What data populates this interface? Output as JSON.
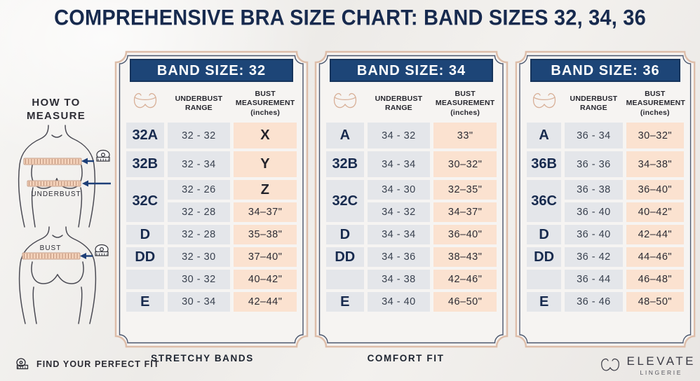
{
  "title": "COMPREHENSIVE BRA SIZE CHART: BAND SIZES 32, 34, 36",
  "how_to_measure": {
    "heading": "HOW TO MEASURE",
    "underbust_label": "UNDERBUST",
    "bust_label": "BUST"
  },
  "chart_data": {
    "type": "table",
    "tables": [
      {
        "band_label": "BAND SIZE: 32",
        "caption": "STRETCHY BANDS",
        "columns": {
          "cup_icon": "bra-icon",
          "underbust": "UNDERBUST RANGE",
          "bust": "BUST MEASUREMENT (inches)"
        },
        "rows": [
          {
            "cup": "32A",
            "range": "32 - 32",
            "bust": "X"
          },
          {
            "cup": "32B",
            "range": "32 - 34",
            "bust": "Y"
          },
          {
            "cup": "32C",
            "cup_span": 2,
            "range": "32 - 26",
            "bust": "Z"
          },
          {
            "cup": null,
            "range": "32 - 28",
            "bust": "34–37\""
          },
          {
            "cup": "D",
            "range": "32 - 28",
            "bust": "35–38\""
          },
          {
            "cup": "DD",
            "range": "32 - 30",
            "bust": "37–40\""
          },
          {
            "cup": "",
            "range": "30 - 32",
            "bust": "40–42\""
          },
          {
            "cup": "E",
            "range": "30 - 34",
            "bust": "42–44\""
          }
        ]
      },
      {
        "band_label": "BAND SIZE: 34",
        "caption": "COMFORT FIT",
        "columns": {
          "cup_icon": "bra-icon",
          "underbust": "UNDERBUST RANGE",
          "bust": "BUST MEASUREMENT (inches)"
        },
        "rows": [
          {
            "cup": "A",
            "range": "34 - 32",
            "bust": "33\""
          },
          {
            "cup": "32B",
            "range": "34 - 34",
            "bust": "30–32\""
          },
          {
            "cup": "32C",
            "cup_span": 2,
            "range": "34 - 30",
            "bust": "32–35\""
          },
          {
            "cup": null,
            "range": "34 - 32",
            "bust": "34–37\""
          },
          {
            "cup": "D",
            "range": "34 - 34",
            "bust": "36–40\""
          },
          {
            "cup": "DD",
            "range": "34 - 36",
            "bust": "38–43\""
          },
          {
            "cup": "",
            "range": "34 - 38",
            "bust": "42–46\""
          },
          {
            "cup": "E",
            "range": "34 - 40",
            "bust": "46–50\""
          }
        ]
      },
      {
        "band_label": "BAND SIZE: 36",
        "caption": "",
        "columns": {
          "cup_icon": "bra-icon",
          "underbust": "UNDERBUST RANGE",
          "bust": "BUST MEASUREMENT (inches)"
        },
        "rows": [
          {
            "cup": "A",
            "range": "36 - 34",
            "bust": "30–32\""
          },
          {
            "cup": "36B",
            "range": "36 - 36",
            "bust": "34–38\""
          },
          {
            "cup": "36C",
            "cup_span": 2,
            "range": "36 - 38",
            "bust": "36–40\""
          },
          {
            "cup": null,
            "range": "36 - 40",
            "bust": "40–42\""
          },
          {
            "cup": "D",
            "range": "36 - 40",
            "bust": "42–44\""
          },
          {
            "cup": "DD",
            "range": "36 - 42",
            "bust": "44–46\""
          },
          {
            "cup": "",
            "range": "36 - 44",
            "bust": "46–48\""
          },
          {
            "cup": "E",
            "range": "36 - 46",
            "bust": "48–50\""
          }
        ]
      }
    ]
  },
  "footer": {
    "find_fit": "FIND YOUR PERFECT FIT",
    "brand": "ELEVATE",
    "brand_sub": "LINGERIE"
  },
  "icons": {
    "cup_column": "bra-icon",
    "measure": "tape-measure-icon"
  },
  "colors": {
    "navy": "#1d4577",
    "navy_dark": "#16345c",
    "title_navy": "#172a4e",
    "cell_gray": "#e4e6ea",
    "cell_peach": "#fbe2d0",
    "frame_tan": "#ddbda9",
    "frame_line": "#4a566d",
    "tape_peach": "#f4d2ba"
  }
}
